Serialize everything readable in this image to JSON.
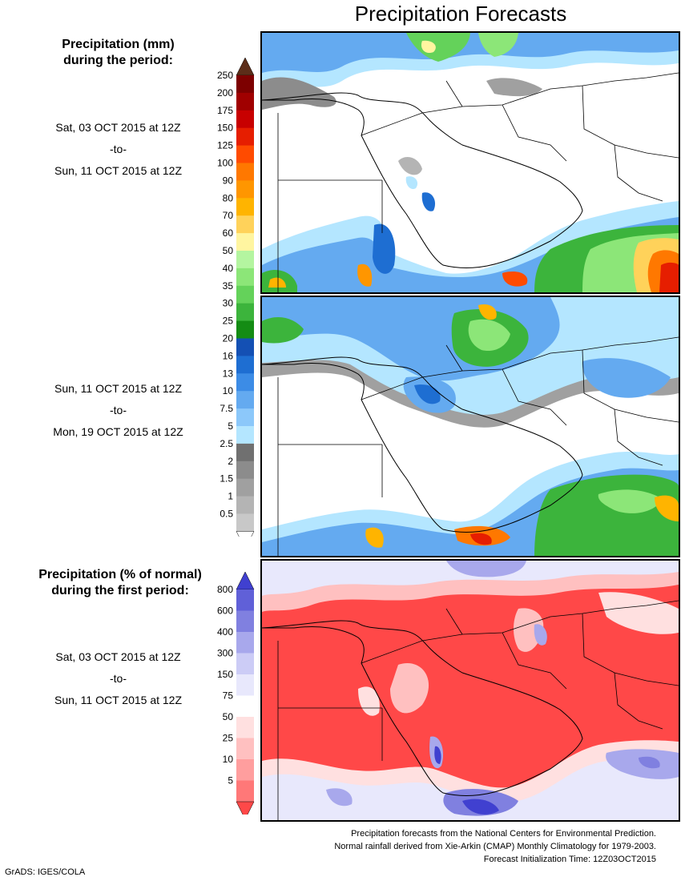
{
  "title": "Precipitation Forecasts",
  "panel1": {
    "heading": [
      "Precipitation (mm)",
      "during the period:"
    ],
    "period": [
      "Sat, 03 OCT 2015 at 12Z",
      "-to-",
      "Sun, 11 OCT 2015 at 12Z"
    ]
  },
  "panel2": {
    "period": [
      "Sun, 11 OCT 2015 at 12Z",
      "-to-",
      "Mon, 19 OCT 2015 at 12Z"
    ]
  },
  "panel3": {
    "heading": [
      "Precipitation (% of normal)",
      "during the first period:"
    ],
    "period": [
      "Sat, 03 OCT 2015 at 12Z",
      "-to-",
      "Sun, 11 OCT 2015 at 12Z"
    ]
  },
  "legend_mm": {
    "labels": [
      "250",
      "200",
      "175",
      "150",
      "125",
      "100",
      "90",
      "80",
      "70",
      "60",
      "50",
      "40",
      "35",
      "30",
      "25",
      "20",
      "16",
      "13",
      "10",
      "7.5",
      "5",
      "2.5",
      "2",
      "1.5",
      "1",
      "0.5"
    ],
    "colors": [
      "#5c2d19",
      "#7d0000",
      "#a00000",
      "#c80000",
      "#e61e00",
      "#ff4b00",
      "#ff7800",
      "#ff9600",
      "#ffb400",
      "#ffd25a",
      "#fff5a0",
      "#b4f5a0",
      "#8ce678",
      "#64d25a",
      "#3cb43c",
      "#148c14",
      "#1450b4",
      "#1e6ed2",
      "#3c8ce6",
      "#64aaf0",
      "#8cc8fa",
      "#b4e6ff",
      "#707070",
      "#8c8c8c",
      "#a0a0a0",
      "#b4b4b4",
      "#c8c8c8",
      "#ffffff"
    ]
  },
  "legend_pct": {
    "labels": [
      "800",
      "600",
      "400",
      "300",
      "150",
      "75",
      "50",
      "25",
      "10",
      "5"
    ],
    "colors": [
      "#4040d0",
      "#6060d8",
      "#8080e0",
      "#a8a8ec",
      "#ccccf6",
      "#e8e8fc",
      "#ffffff",
      "#ffe0e0",
      "#ffc0c0",
      "#ff9e9e",
      "#ff7878",
      "#ff4848"
    ]
  },
  "footer": [
    "Precipitation forecasts from the National Centers for Environmental Prediction.",
    "Normal rainfall derived from Xie-Arkin (CMAP) Monthly Climatology for 1979-2003.",
    "Forecast Initialization Time: 12Z03OCT2015"
  ],
  "credit": "GrADS: IGES/COLA"
}
